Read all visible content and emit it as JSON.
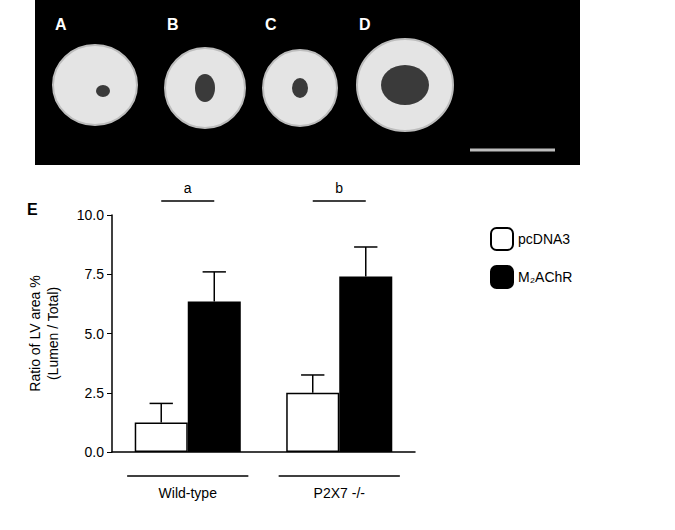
{
  "photo_panel": {
    "labels": [
      "A",
      "B",
      "C",
      "D"
    ]
  },
  "chart_data": {
    "type": "bar",
    "panel_label": "E",
    "y_label": "Ratio of LV area %\n(Lumen / Total)",
    "categories": [
      "Wild-type",
      "P2X7 -/-"
    ],
    "series": [
      {
        "name": "pcDNA3",
        "color": "#ffffff",
        "values": [
          1.25,
          2.5
        ],
        "errors": [
          0.8,
          0.75
        ]
      },
      {
        "name": "M₂AChR",
        "color": "#000000",
        "values": [
          6.35,
          7.4
        ],
        "errors": [
          1.25,
          1.25
        ]
      }
    ],
    "ylim": [
      0,
      10
    ],
    "yticks": [
      {
        "value": 0,
        "label": "0.0"
      },
      {
        "value": 2.5,
        "label": "2.5"
      },
      {
        "value": 5,
        "label": "5.0"
      },
      {
        "value": 7.5,
        "label": "7.5"
      },
      {
        "value": 10,
        "label": "10.0"
      }
    ],
    "grid": false,
    "legend": "right",
    "annotations": [
      {
        "text": "a",
        "category": "Wild-type"
      },
      {
        "text": "b",
        "category": "P2X7 -/-"
      }
    ]
  }
}
